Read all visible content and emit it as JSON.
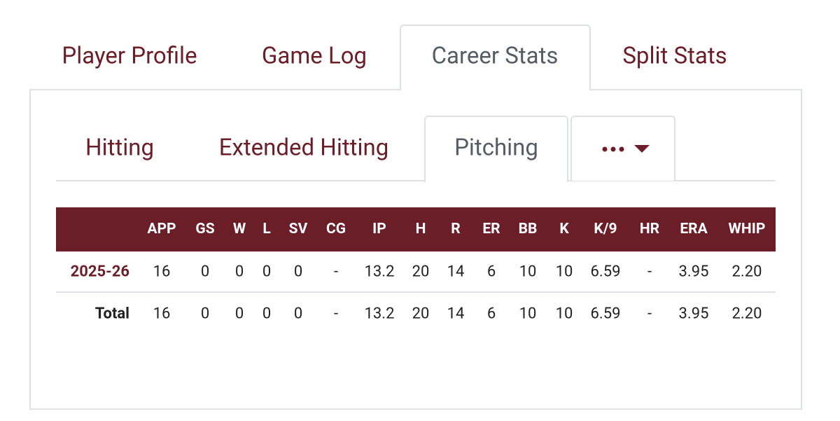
{
  "tabs": [
    "Player Profile",
    "Game Log",
    "Career Stats",
    "Split Stats"
  ],
  "active_tab": 2,
  "subtabs": [
    "Hitting",
    "Extended Hitting",
    "Pitching"
  ],
  "active_subtab": 2,
  "table": {
    "header": [
      "APP",
      "GS",
      "W",
      "L",
      "SV",
      "CG",
      "IP",
      "H",
      "R",
      "ER",
      "BB",
      "K",
      "K/9",
      "HR",
      "ERA",
      "WHIP"
    ],
    "rows": [
      {
        "label": "2025-26",
        "cells": [
          "16",
          "0",
          "0",
          "0",
          "0",
          "-",
          "13.2",
          "20",
          "14",
          "6",
          "10",
          "10",
          "6.59",
          "-",
          "3.95",
          "2.20"
        ]
      },
      {
        "label": "Total",
        "cells": [
          "16",
          "0",
          "0",
          "0",
          "0",
          "-",
          "13.2",
          "20",
          "14",
          "6",
          "10",
          "10",
          "6.59",
          "-",
          "3.95",
          "2.20"
        ]
      }
    ]
  }
}
